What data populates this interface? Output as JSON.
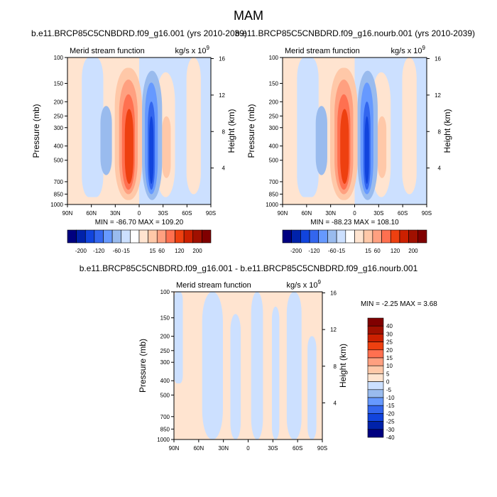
{
  "page_title": "MAM",
  "chart_data": [
    {
      "type": "heatmap",
      "title": "b.e11.BRCP85C5CNBDRD.f09_g16.001 (yrs 2010-2039)",
      "left_label": "Merid stream function",
      "units_label": "kg/s x 10",
      "units_exponent": "9",
      "ylabel": "Pressure (mb)",
      "y2label": "Height (km)",
      "x_ticks": [
        "90N",
        "60N",
        "30N",
        "0",
        "30S",
        "60S",
        "90S"
      ],
      "y_ticks": [
        "100",
        "150",
        "200",
        "250",
        "300",
        "400",
        "500",
        "700",
        "850",
        "1000"
      ],
      "y2_ticks": [
        "16",
        "12",
        "8",
        "4"
      ],
      "min_max_label": "MIN = -86.70   MAX = 109.20",
      "min": -86.7,
      "max": 109.2,
      "colorbar_labels": [
        "-200",
        "-120",
        "-60",
        "-15",
        "15",
        "60",
        "120",
        "200"
      ],
      "colorbar_colors": [
        "#000080",
        "#0022aa",
        "#1144dd",
        "#3366ee",
        "#6699ff",
        "#99bbee",
        "#cce0ff",
        "#ffffff",
        "#ffe4d0",
        "#ffc8a8",
        "#ffa080",
        "#ff7050",
        "#ee4010",
        "#cc2000",
        "#a01000",
        "#800000"
      ]
    },
    {
      "type": "heatmap",
      "title": "b.e11.BRCP85C5CNBDRD.f09_g16.nourb.001 (yrs 2010-2039)",
      "left_label": "Merid stream function",
      "units_label": "kg/s x 10",
      "units_exponent": "9",
      "ylabel": "Pressure (mb)",
      "y2label": "Height (km)",
      "x_ticks": [
        "90N",
        "60N",
        "30N",
        "0",
        "30S",
        "60S",
        "90S"
      ],
      "y_ticks": [
        "100",
        "150",
        "200",
        "250",
        "300",
        "400",
        "500",
        "700",
        "850",
        "1000"
      ],
      "y2_ticks": [
        "16",
        "12",
        "8",
        "4"
      ],
      "min_max_label": "MIN = -88.23   MAX = 108.10",
      "min": -88.23,
      "max": 108.1,
      "colorbar_labels": [
        "-200",
        "-120",
        "-60",
        "-15",
        "15",
        "60",
        "120",
        "200"
      ],
      "colorbar_colors": [
        "#000080",
        "#0022aa",
        "#1144dd",
        "#3366ee",
        "#6699ff",
        "#99bbee",
        "#cce0ff",
        "#ffffff",
        "#ffe4d0",
        "#ffc8a8",
        "#ffa080",
        "#ff7050",
        "#ee4010",
        "#cc2000",
        "#a01000",
        "#800000"
      ]
    },
    {
      "type": "heatmap",
      "title": "b.e11.BRCP85C5CNBDRD.f09_g16.001 - b.e11.BRCP85C5CNBDRD.f09_g16.nourb.001",
      "left_label": "Merid stream function",
      "units_label": "kg/s x 10",
      "units_exponent": "9",
      "ylabel": "Pressure (mb)",
      "y2label": "Height (km)",
      "x_ticks": [
        "90N",
        "60N",
        "30N",
        "0",
        "30S",
        "60S",
        "90S"
      ],
      "y_ticks": [
        "100",
        "150",
        "200",
        "250",
        "300",
        "400",
        "500",
        "700",
        "850",
        "1000"
      ],
      "y2_ticks": [
        "16",
        "12",
        "8",
        "4"
      ],
      "min_max_label": "MIN =  -2.25   MAX =   3.68",
      "min": -2.25,
      "max": 3.68,
      "colorbar_labels": [
        "40",
        "30",
        "25",
        "20",
        "15",
        "10",
        "5",
        "0",
        "-5",
        "-10",
        "-15",
        "-20",
        "-25",
        "-30",
        "-40"
      ],
      "colorbar_colors": [
        "#800000",
        "#a01000",
        "#cc2000",
        "#ee4010",
        "#ff7050",
        "#ffa080",
        "#ffc8a8",
        "#ffe4d0",
        "#cce0ff",
        "#99bbee",
        "#6699ff",
        "#3366ee",
        "#1144dd",
        "#0022aa",
        "#000080"
      ]
    }
  ]
}
